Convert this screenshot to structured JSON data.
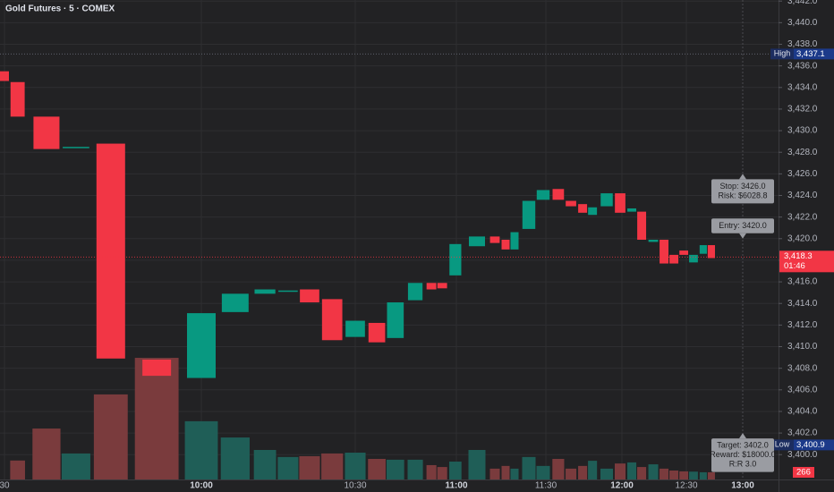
{
  "chart_data": {
    "type": "candlestick",
    "title": "Gold Futures · 5 · COMEX",
    "x": [
      569.6,
      572.0,
      576.4,
      580.9,
      586.2,
      593.2,
      600.0,
      606.6,
      612.4,
      616.9,
      621.1,
      625.5,
      630.0,
      636.4,
      641.9,
      647.8,
      652.6,
      655.8,
      659.7,
      666.9,
      672.9,
      676.5,
      679.5,
      684.3,
      689.1,
      694.9,
      699.9,
      704.5,
      708.4,
      714.0,
      719.3,
      724.6,
      729.2,
      734.6,
      739.6,
      744.2,
      748.8,
      753.8,
      759.0,
      763.3
    ],
    "open": [
      3435.5,
      3434.5,
      3431.3,
      3428.4,
      3428.8,
      3408.8,
      3407.1,
      3413.2,
      3414.9,
      3415.1,
      3415.3,
      3414.4,
      3410.9,
      3412.2,
      3410.8,
      3414.3,
      3415.9,
      3415.9,
      3416.6,
      3419.3,
      3420.2,
      3419.9,
      3419.0,
      3420.9,
      3423.6,
      3424.6,
      3423.5,
      3423.2,
      3422.2,
      3423.0,
      3424.2,
      3422.5,
      3422.5,
      3419.7,
      3419.9,
      3418.5,
      3418.9,
      3417.8,
      3418.6,
      3419.4
    ],
    "high": {
      "label": "High",
      "value": 3437.1,
      "value_label": "3,437.1"
    },
    "low": {
      "label": "Low",
      "value": 3400.9,
      "value_label": "3,400.9"
    },
    "close": [
      3434.6,
      3431.3,
      3428.3,
      3428.5,
      3408.9,
      3407.3,
      3413.1,
      3414.9,
      3415.3,
      3415.2,
      3414.1,
      3410.6,
      3412.4,
      3410.4,
      3414.1,
      3415.9,
      3415.3,
      3415.4,
      3419.5,
      3420.2,
      3419.6,
      3419.0,
      3420.6,
      3423.5,
      3424.5,
      3423.6,
      3423.0,
      3422.4,
      3422.9,
      3424.2,
      3422.4,
      3422.8,
      3419.9,
      3419.9,
      3417.7,
      3417.7,
      3418.5,
      3418.5,
      3419.4,
      3418.2
    ],
    "volume": [
      null,
      700,
      1880,
      960,
      3140,
      4490,
      2150,
      1550,
      1090,
      830,
      860,
      960,
      990,
      760,
      730,
      730,
      530,
      460,
      660,
      1090,
      400,
      500,
      400,
      830,
      500,
      760,
      400,
      500,
      690,
      400,
      590,
      630,
      460,
      560,
      400,
      330,
      300,
      290,
      266,
      266
    ],
    "up_color": "#089981",
    "down_color": "#f23645",
    "volume_up_color": "#1f5e57",
    "volume_down_color": "#7a3b3d",
    "ylim": [
      3397.7,
      3442.1
    ],
    "volume_lim": [
      0,
      17700
    ],
    "yticks": [
      {
        "value": 3400,
        "label": "3,400.0"
      },
      {
        "value": 3402,
        "label": "3,402.0"
      },
      {
        "value": 3404,
        "label": "3,404.0"
      },
      {
        "value": 3406,
        "label": "3,406.0"
      },
      {
        "value": 3408,
        "label": "3,408.0"
      },
      {
        "value": 3410,
        "label": "3,410.0"
      },
      {
        "value": 3412,
        "label": "3,412.0"
      },
      {
        "value": 3414,
        "label": "3,414.0"
      },
      {
        "value": 3416,
        "label": "3,416.0"
      },
      {
        "value": 3418,
        "label": "3,418.0"
      },
      {
        "value": 3420,
        "label": "3,420.0"
      },
      {
        "value": 3422,
        "label": "3,422.0"
      },
      {
        "value": 3424,
        "label": "3,424.0"
      },
      {
        "value": 3426,
        "label": "3,426.0"
      },
      {
        "value": 3428,
        "label": "3,428.0"
      },
      {
        "value": 3430,
        "label": "3,430.0"
      },
      {
        "value": 3432,
        "label": "3,432.0"
      },
      {
        "value": 3434,
        "label": "3,434.0"
      },
      {
        "value": 3436,
        "label": "3,436.0"
      },
      {
        "value": 3438,
        "label": "3,438.0"
      },
      {
        "value": 3440,
        "label": "3,440.0"
      },
      {
        "value": 3442,
        "label": "3,442.0"
      }
    ],
    "xticks": [
      {
        "value": 570,
        "label": "30"
      },
      {
        "value": 600,
        "label": "10:00"
      },
      {
        "value": 630,
        "label": "10:30"
      },
      {
        "value": 660,
        "label": "11:00"
      },
      {
        "value": 690,
        "label": "11:30"
      },
      {
        "value": 720,
        "label": "12:00"
      },
      {
        "value": 750,
        "label": "12:30"
      },
      {
        "value": 780,
        "label": "13:00"
      }
    ],
    "grid": true,
    "last_price": {
      "value": 3418.3,
      "value_label": "3,418.3",
      "countdown": "01:46"
    },
    "last_volume": 266,
    "trade": {
      "stop": {
        "price": 3426.0,
        "lines": [
          "Stop:  3426.0",
          "Risk: $6028.8"
        ]
      },
      "entry": {
        "price": 3420.0,
        "lines": [
          "Entry:  3420.0"
        ]
      },
      "target": {
        "price": 3402.0,
        "lines": [
          "Target: 3402.0",
          "Reward: $18000.0",
          "R:R 3.0"
        ]
      }
    }
  }
}
